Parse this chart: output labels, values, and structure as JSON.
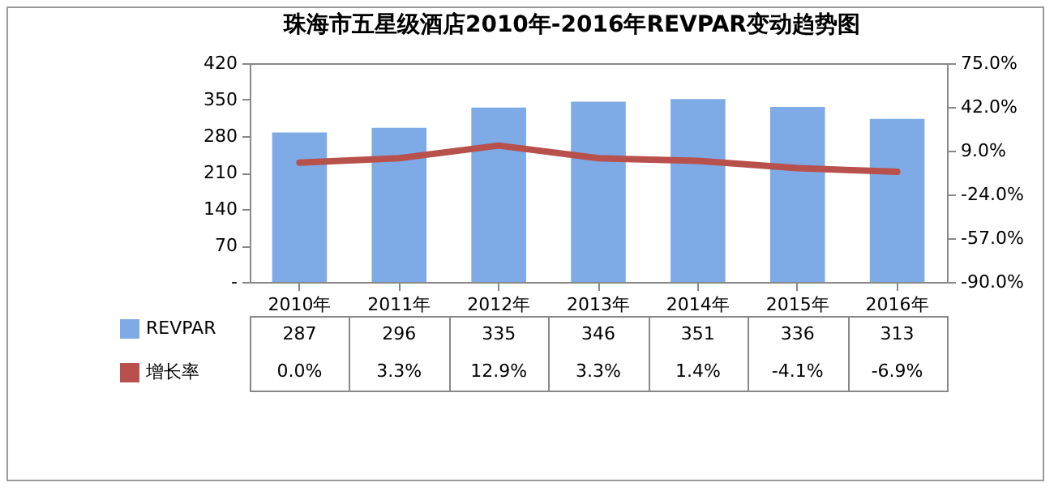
{
  "chart_data": {
    "type": "bar",
    "title": "珠海市五星级酒店2010年-2016年REVPAR变动趋势图",
    "categories": [
      "2010年",
      "2011年",
      "2012年",
      "2013年",
      "2014年",
      "2015年",
      "2016年"
    ],
    "series": [
      {
        "name": "REVPAR",
        "color": "#7eaae6",
        "values": [
          287,
          296,
          335,
          346,
          351,
          336,
          313
        ],
        "value_labels": [
          "287",
          "296",
          "335",
          "346",
          "351",
          "336",
          "313"
        ]
      },
      {
        "name": "增长率",
        "type": "line",
        "axis": "y2",
        "color": "#b8504c",
        "values": [
          0.0,
          3.3,
          12.9,
          3.3,
          1.4,
          -4.1,
          -6.9
        ],
        "value_labels": [
          "0.0%",
          "3.3%",
          "12.9%",
          "3.3%",
          "1.4%",
          "-4.1%",
          "-6.9%"
        ]
      }
    ],
    "ylim": [
      0,
      420
    ],
    "yticks": [
      {
        "value": 0,
        "label": "-"
      },
      70,
      140,
      210,
      280,
      350,
      420
    ],
    "y2lim": [
      -90,
      75
    ],
    "y2ticks": [
      {
        "value": -90,
        "label": "-90.0%"
      },
      {
        "value": -57,
        "label": "-57.0%"
      },
      {
        "value": -24,
        "label": "-24.0%"
      },
      {
        "value": 9,
        "label": "9.0%"
      },
      {
        "value": 42,
        "label": "42.0%"
      },
      {
        "value": 75,
        "label": "75.0%"
      }
    ],
    "grid": false,
    "legend": "bottom left",
    "marker": "none",
    "line_style": "solid"
  }
}
